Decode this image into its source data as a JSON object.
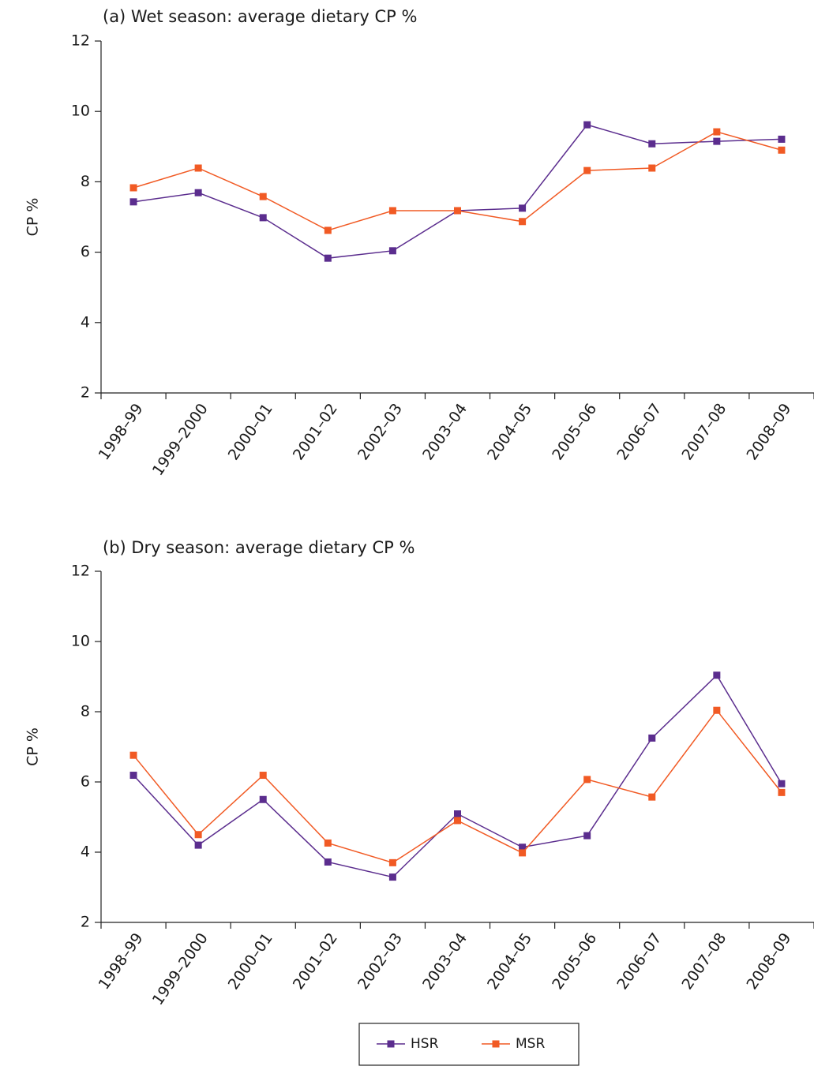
{
  "chart_data": [
    {
      "type": "line",
      "title": "(a) Wet season: average dietary CP %",
      "y_label": "CP %",
      "categories": [
        "1998–99",
        "1999–2000",
        "2000–01",
        "2001–02",
        "2002–03",
        "2003–04",
        "2004–05",
        "2005–06",
        "2006–07",
        "2007–08",
        "2008–09"
      ],
      "series": [
        {
          "name": "HSR",
          "color": "#5b2d8e",
          "values": [
            7.43,
            7.69,
            6.98,
            5.83,
            6.04,
            7.18,
            7.25,
            9.62,
            9.08,
            9.15,
            9.21
          ]
        },
        {
          "name": "MSR",
          "color": "#f15a24",
          "values": [
            7.83,
            8.39,
            7.58,
            6.62,
            7.18,
            7.18,
            6.87,
            8.32,
            8.39,
            9.42,
            8.9
          ]
        }
      ],
      "ylim": [
        2,
        12
      ],
      "yticks": [
        2,
        4,
        6,
        8,
        10,
        12
      ],
      "legend": "bottom"
    },
    {
      "type": "line",
      "title": "(b) Dry season: average dietary CP %",
      "y_label": "CP %",
      "categories": [
        "1998–99",
        "1999–2000",
        "2000–01",
        "2001–02",
        "2002–03",
        "2003–04",
        "2004–05",
        "2005–06",
        "2006–07",
        "2007–08",
        "2008–09"
      ],
      "series": [
        {
          "name": "HSR",
          "color": "#5b2d8e",
          "values": [
            6.19,
            4.2,
            5.5,
            3.72,
            3.29,
            5.09,
            4.14,
            4.47,
            7.25,
            9.04,
            5.95
          ]
        },
        {
          "name": "MSR",
          "color": "#f15a24",
          "values": [
            6.76,
            4.5,
            6.19,
            4.26,
            3.7,
            4.9,
            3.98,
            6.07,
            5.57,
            8.04,
            5.7
          ]
        }
      ],
      "ylim": [
        2,
        12
      ],
      "yticks": [
        2,
        4,
        6,
        8,
        10,
        12
      ]
    }
  ]
}
